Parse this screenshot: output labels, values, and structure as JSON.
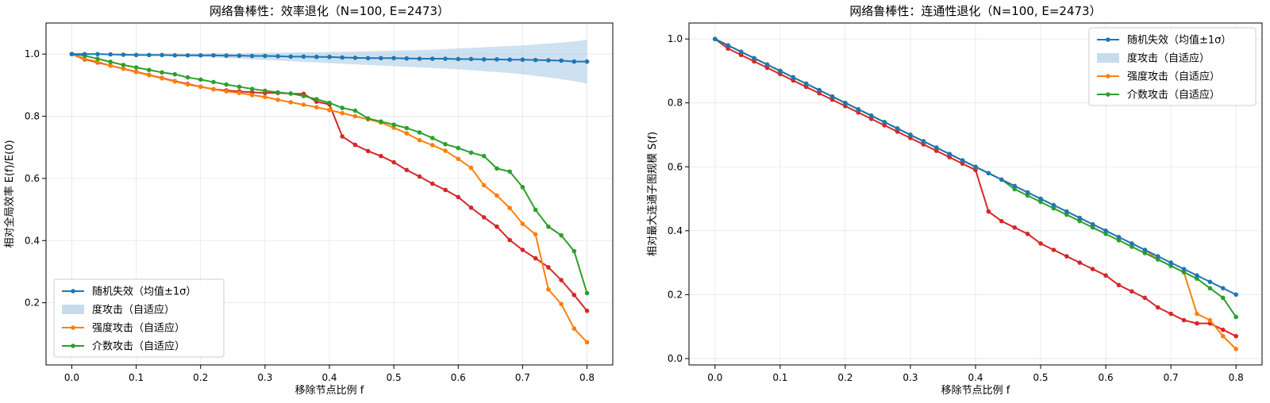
{
  "chart_data": [
    {
      "type": "line",
      "title": "网络鲁棒性：效率退化（N=100, E=2473）",
      "xlabel": "移除节点比例 f",
      "ylabel": "相对全局效率 E(f)/E(0)",
      "xlim": [
        -0.04,
        0.84
      ],
      "ylim": [
        0.0,
        1.1
      ],
      "xticks": [
        0.0,
        0.1,
        0.2,
        0.3,
        0.4,
        0.5,
        0.6,
        0.7,
        0.8
      ],
      "xtick_labels": [
        "0.0",
        "0.1",
        "0.2",
        "0.3",
        "0.4",
        "0.5",
        "0.6",
        "0.7",
        "0.8"
      ],
      "yticks": [
        0.2,
        0.4,
        0.6,
        0.8,
        1.0
      ],
      "ytick_labels": [
        "0.2",
        "0.4",
        "0.6",
        "0.8",
        "1.0"
      ],
      "grid": true,
      "legend_position": "lower-left",
      "legend": [
        {
          "label": "随机失效（均值±1σ）",
          "kind": "line",
          "color": "#1f77b4"
        },
        {
          "label": "度攻击（自适应）",
          "kind": "band",
          "color": "#aecde6"
        },
        {
          "label": "强度攻击（自适应）",
          "kind": "line",
          "color": "#ff7f0e"
        },
        {
          "label": "介数攻击（自适应）",
          "kind": "line",
          "color": "#2ca02c"
        }
      ],
      "x": [
        0.0,
        0.02,
        0.04,
        0.06,
        0.08,
        0.1,
        0.12,
        0.14,
        0.16,
        0.18,
        0.2,
        0.22,
        0.24,
        0.26,
        0.28,
        0.3,
        0.32,
        0.34,
        0.36,
        0.38,
        0.4,
        0.42,
        0.44,
        0.46,
        0.48,
        0.5,
        0.52,
        0.54,
        0.56,
        0.58,
        0.6,
        0.62,
        0.64,
        0.66,
        0.68,
        0.7,
        0.72,
        0.74,
        0.76,
        0.78,
        0.8
      ],
      "band": {
        "color": "#aecde6",
        "lower": [
          1.0,
          0.999,
          0.999,
          0.998,
          0.997,
          0.996,
          0.995,
          0.994,
          0.993,
          0.992,
          0.991,
          0.989,
          0.987,
          0.985,
          0.983,
          0.981,
          0.979,
          0.977,
          0.975,
          0.973,
          0.971,
          0.969,
          0.967,
          0.965,
          0.963,
          0.961,
          0.959,
          0.957,
          0.955,
          0.953,
          0.951,
          0.948,
          0.945,
          0.942,
          0.939,
          0.935,
          0.93,
          0.925,
          0.919,
          0.913,
          0.905
        ],
        "upper": [
          1.0,
          1.001,
          1.002,
          1.002,
          1.002,
          1.002,
          1.002,
          1.002,
          1.002,
          1.002,
          1.002,
          1.003,
          1.003,
          1.003,
          1.004,
          1.004,
          1.005,
          1.005,
          1.006,
          1.006,
          1.007,
          1.007,
          1.008,
          1.009,
          1.01,
          1.011,
          1.012,
          1.013,
          1.014,
          1.016,
          1.018,
          1.02,
          1.022,
          1.024,
          1.026,
          1.028,
          1.031,
          1.034,
          1.037,
          1.041,
          1.046
        ]
      },
      "series": [
        {
          "name": "随机失效（均值±1σ）",
          "color": "#1f77b4",
          "values": [
            1.0,
            1.0,
            1.0,
            0.999,
            0.998,
            0.997,
            0.997,
            0.997,
            0.996,
            0.996,
            0.996,
            0.996,
            0.995,
            0.995,
            0.994,
            0.994,
            0.993,
            0.992,
            0.992,
            0.991,
            0.991,
            0.989,
            0.988,
            0.987,
            0.987,
            0.987,
            0.986,
            0.985,
            0.985,
            0.985,
            0.984,
            0.984,
            0.983,
            0.983,
            0.982,
            0.982,
            0.981,
            0.98,
            0.979,
            0.976,
            0.976
          ]
        },
        {
          "name": "强度攻击（自适应）",
          "color": "#ff7f0e",
          "values": [
            1.0,
            0.985,
            0.975,
            0.963,
            0.953,
            0.942,
            0.932,
            0.922,
            0.912,
            0.902,
            0.895,
            0.887,
            0.88,
            0.875,
            0.868,
            0.862,
            0.853,
            0.845,
            0.837,
            0.829,
            0.82,
            0.81,
            0.8,
            0.79,
            0.78,
            0.763,
            0.745,
            0.723,
            0.707,
            0.689,
            0.663,
            0.634,
            0.578,
            0.545,
            0.505,
            0.454,
            0.42,
            0.243,
            0.196,
            0.117,
            0.073
          ]
        },
        {
          "name": "介数攻击（自适应）",
          "color": "#2ca02c",
          "values": [
            1.0,
            0.995,
            0.985,
            0.975,
            0.965,
            0.957,
            0.949,
            0.941,
            0.935,
            0.925,
            0.918,
            0.91,
            0.902,
            0.895,
            0.888,
            0.882,
            0.877,
            0.873,
            0.865,
            0.855,
            0.843,
            0.827,
            0.818,
            0.793,
            0.783,
            0.773,
            0.762,
            0.748,
            0.73,
            0.71,
            0.698,
            0.683,
            0.672,
            0.632,
            0.622,
            0.572,
            0.499,
            0.445,
            0.417,
            0.366,
            0.231
          ]
        },
        {
          "name": "度攻击",
          "color": "#d62728",
          "values": [
            1.0,
            0.983,
            0.973,
            0.963,
            0.953,
            0.943,
            0.933,
            0.923,
            0.913,
            0.904,
            0.895,
            0.887,
            0.883,
            0.88,
            0.877,
            0.875,
            0.875,
            0.873,
            0.872,
            0.847,
            0.838,
            0.735,
            0.708,
            0.688,
            0.672,
            0.652,
            0.627,
            0.606,
            0.583,
            0.563,
            0.54,
            0.506,
            0.475,
            0.445,
            0.402,
            0.37,
            0.343,
            0.314,
            0.273,
            0.225,
            0.174
          ]
        }
      ]
    },
    {
      "type": "line",
      "title": "网络鲁棒性：连通性退化（N=100, E=2473）",
      "xlabel": "移除节点比例 f",
      "ylabel": "相对最大连通子图规模 S(f)",
      "xlim": [
        -0.04,
        0.84
      ],
      "ylim": [
        -0.02,
        1.05
      ],
      "xticks": [
        0.0,
        0.1,
        0.2,
        0.3,
        0.4,
        0.5,
        0.6,
        0.7,
        0.8
      ],
      "xtick_labels": [
        "0.0",
        "0.1",
        "0.2",
        "0.3",
        "0.4",
        "0.5",
        "0.6",
        "0.7",
        "0.8"
      ],
      "yticks": [
        0.0,
        0.2,
        0.4,
        0.6,
        0.8,
        1.0
      ],
      "ytick_labels": [
        "0.0",
        "0.2",
        "0.4",
        "0.6",
        "0.8",
        "1.0"
      ],
      "grid": true,
      "legend_position": "upper-right",
      "legend": [
        {
          "label": "随机失效（均值±1σ）",
          "kind": "line",
          "color": "#1f77b4"
        },
        {
          "label": "度攻击（自适应）",
          "kind": "band",
          "color": "#aecde6"
        },
        {
          "label": "强度攻击（自适应）",
          "kind": "line",
          "color": "#ff7f0e"
        },
        {
          "label": "介数攻击（自适应）",
          "kind": "line",
          "color": "#2ca02c"
        }
      ],
      "x": [
        0.0,
        0.02,
        0.04,
        0.06,
        0.08,
        0.1,
        0.12,
        0.14,
        0.16,
        0.18,
        0.2,
        0.22,
        0.24,
        0.26,
        0.28,
        0.3,
        0.32,
        0.34,
        0.36,
        0.38,
        0.4,
        0.42,
        0.44,
        0.46,
        0.48,
        0.5,
        0.52,
        0.54,
        0.56,
        0.58,
        0.6,
        0.62,
        0.64,
        0.66,
        0.68,
        0.7,
        0.72,
        0.74,
        0.76,
        0.78,
        0.8
      ],
      "band": null,
      "series": [
        {
          "name": "随机失效（均值±1σ）",
          "color": "#1f77b4",
          "values": [
            1.0,
            0.98,
            0.96,
            0.94,
            0.92,
            0.9,
            0.88,
            0.86,
            0.84,
            0.82,
            0.8,
            0.78,
            0.76,
            0.74,
            0.72,
            0.7,
            0.68,
            0.66,
            0.64,
            0.62,
            0.6,
            0.58,
            0.56,
            0.54,
            0.52,
            0.5,
            0.48,
            0.46,
            0.44,
            0.42,
            0.4,
            0.38,
            0.36,
            0.34,
            0.32,
            0.3,
            0.28,
            0.26,
            0.24,
            0.22,
            0.2
          ]
        },
        {
          "name": "强度攻击（自适应）",
          "color": "#ff7f0e",
          "values": [
            1.0,
            0.98,
            0.96,
            0.94,
            0.92,
            0.9,
            0.88,
            0.86,
            0.84,
            0.82,
            0.8,
            0.78,
            0.76,
            0.74,
            0.72,
            0.7,
            0.68,
            0.66,
            0.64,
            0.62,
            0.6,
            0.58,
            0.56,
            0.54,
            0.52,
            0.5,
            0.48,
            0.46,
            0.44,
            0.42,
            0.4,
            0.38,
            0.36,
            0.34,
            0.31,
            0.29,
            0.27,
            0.14,
            0.12,
            0.07,
            0.03
          ]
        },
        {
          "name": "介数攻击（自适应）",
          "color": "#2ca02c",
          "values": [
            1.0,
            0.98,
            0.96,
            0.94,
            0.92,
            0.9,
            0.88,
            0.86,
            0.84,
            0.82,
            0.8,
            0.78,
            0.76,
            0.74,
            0.72,
            0.7,
            0.68,
            0.66,
            0.64,
            0.62,
            0.6,
            0.58,
            0.56,
            0.53,
            0.51,
            0.49,
            0.47,
            0.45,
            0.43,
            0.41,
            0.39,
            0.37,
            0.35,
            0.33,
            0.31,
            0.29,
            0.27,
            0.25,
            0.22,
            0.19,
            0.13
          ]
        },
        {
          "name": "度攻击",
          "color": "#d62728",
          "values": [
            1.0,
            0.97,
            0.95,
            0.93,
            0.91,
            0.89,
            0.87,
            0.85,
            0.83,
            0.81,
            0.79,
            0.77,
            0.75,
            0.73,
            0.71,
            0.69,
            0.67,
            0.65,
            0.63,
            0.61,
            0.59,
            0.46,
            0.43,
            0.41,
            0.39,
            0.36,
            0.34,
            0.32,
            0.3,
            0.28,
            0.26,
            0.23,
            0.21,
            0.19,
            0.16,
            0.14,
            0.12,
            0.11,
            0.11,
            0.09,
            0.07
          ]
        }
      ]
    }
  ]
}
